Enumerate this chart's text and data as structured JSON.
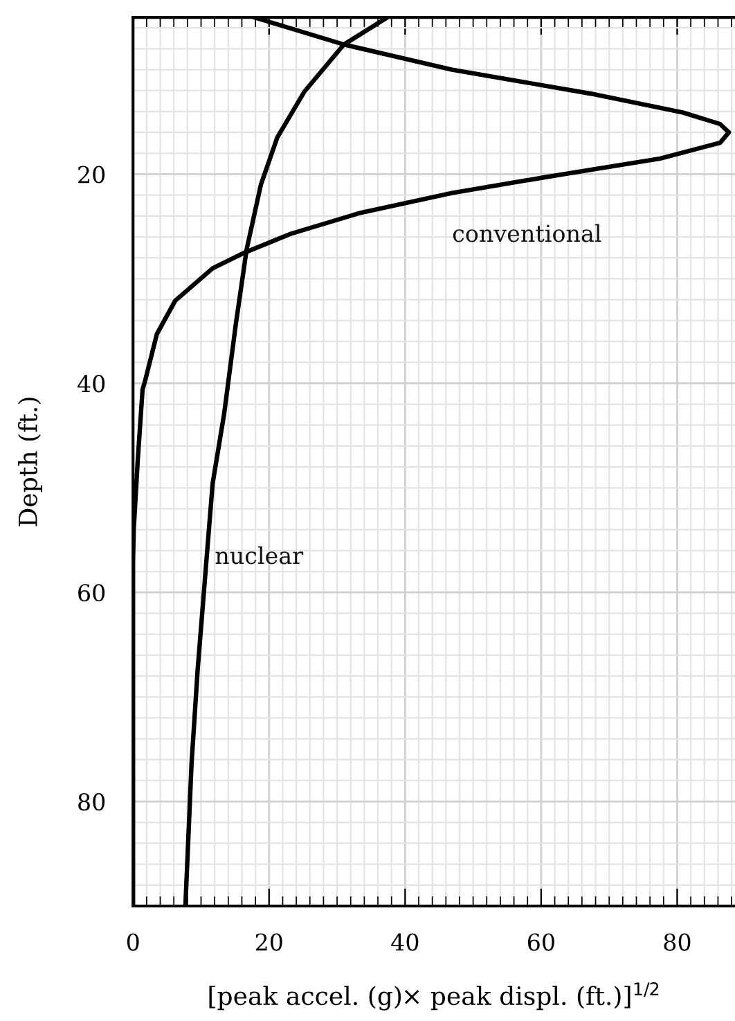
{
  "chart_data": {
    "type": "line",
    "xlabel": "[peak accel. (g)× peak displ. (ft.)]$^{1/2}$",
    "ylabel": "Depth (ft.)",
    "xlim": [
      0,
      88.5
    ],
    "xticks": [
      0,
      20,
      40,
      60,
      80
    ],
    "ylim": [
      90,
      5
    ],
    "yticks": [
      20,
      40,
      60,
      80
    ],
    "grid": true,
    "legend": false,
    "marker": "none",
    "line_style": "solid",
    "series": [
      {
        "name": "conventional",
        "color": "#000000",
        "x": [
          17.8,
          31.0,
          46.9,
          67.3,
          80.8,
          86.3,
          87.6,
          86.3,
          77.5,
          60.5,
          46.9,
          33.4,
          23.2,
          16.4,
          11.7,
          6.2,
          3.5,
          1.8,
          1.4,
          0.7,
          0.1,
          0,
          0
        ],
        "values": [
          5,
          7.6,
          10.0,
          12.3,
          14.1,
          15.2,
          16.0,
          17.0,
          18.5,
          20.3,
          21.8,
          23.7,
          25.7,
          27.5,
          29.0,
          32.1,
          35.3,
          39.7,
          40.6,
          47.3,
          54,
          57,
          90
        ]
      },
      {
        "name": "nuclear",
        "color": "#000000",
        "x": [
          37.4,
          31.0,
          25.2,
          21.2,
          18.8,
          16.7,
          15.1,
          13.4,
          11.7,
          10.6,
          9.5,
          8.6,
          7.7
        ],
        "values": [
          5,
          7.6,
          12.1,
          16.5,
          21.0,
          27.2,
          34.4,
          42.9,
          49.6,
          58.5,
          67.4,
          76.4,
          90
        ]
      }
    ]
  }
}
